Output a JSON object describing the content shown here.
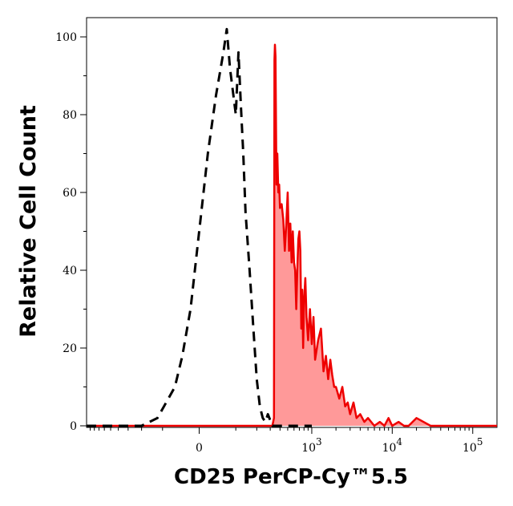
{
  "chart_data": {
    "type": "histogram",
    "xlabel": "CD25 PerCP-Cy™5.5",
    "ylabel": "Relative Cell Count",
    "x_scale": "biexponential",
    "ylim": [
      0,
      100
    ],
    "y_ticks": [
      0,
      20,
      40,
      60,
      80,
      100
    ],
    "y_tick_labels": [
      "0",
      "20",
      "40",
      "60",
      "80",
      "100"
    ],
    "x_ticks": [
      {
        "value": 0,
        "base": "0",
        "exp": ""
      },
      {
        "value": 1000,
        "base": "10",
        "exp": "3"
      },
      {
        "value": 10000,
        "base": "10",
        "exp": "4"
      },
      {
        "value": 100000,
        "base": "10",
        "exp": "5"
      }
    ],
    "grid": false,
    "legend": "none",
    "series": [
      {
        "style": "dashed-black",
        "color": "#000000",
        "fill": "none",
        "x": [
          -1000,
          -200,
          -120,
          -60,
          -40,
          -20,
          0,
          20,
          40,
          60,
          70,
          80,
          100,
          110,
          120,
          130,
          140,
          160,
          180,
          200,
          220,
          240,
          260,
          280,
          320,
          400,
          1000
        ],
        "y": [
          0,
          0,
          2,
          10,
          18,
          30,
          50,
          70,
          85,
          96,
          102,
          92,
          80,
          96,
          82,
          70,
          55,
          40,
          25,
          12,
          5,
          2,
          1,
          3,
          0,
          0,
          0
        ]
      },
      {
        "style": "solid-red-filled",
        "color": "#ee0000",
        "fill": "#ff9999",
        "x": [
          -1000,
          320,
          335,
          340,
          345,
          350,
          360,
          370,
          380,
          390,
          400,
          420,
          440,
          460,
          480,
          500,
          520,
          540,
          560,
          580,
          600,
          620,
          640,
          660,
          680,
          700,
          720,
          740,
          760,
          780,
          800,
          830,
          860,
          900,
          950,
          1000,
          1050,
          1100,
          1200,
          1300,
          1400,
          1500,
          1600,
          1700,
          1800,
          1900,
          2000,
          2200,
          2400,
          2600,
          2800,
          3000,
          3300,
          3600,
          4000,
          4500,
          5000,
          6000,
          7000,
          8000,
          9000,
          10000,
          12000,
          14000,
          16000,
          20000,
          30000,
          60000,
          200000
        ],
        "y": [
          0,
          0,
          2,
          94,
          98,
          95,
          62,
          70,
          60,
          62,
          56,
          57,
          53,
          45,
          52,
          60,
          45,
          52,
          42,
          50,
          42,
          40,
          30,
          40,
          48,
          50,
          45,
          25,
          35,
          20,
          32,
          38,
          28,
          22,
          30,
          21,
          28,
          17,
          22,
          25,
          14,
          18,
          12,
          17,
          13,
          10,
          10,
          7,
          10,
          5,
          6,
          3,
          6,
          2,
          3,
          1,
          2,
          0,
          1,
          0,
          2,
          0,
          1,
          0,
          0,
          2,
          0,
          0,
          0
        ]
      }
    ]
  }
}
